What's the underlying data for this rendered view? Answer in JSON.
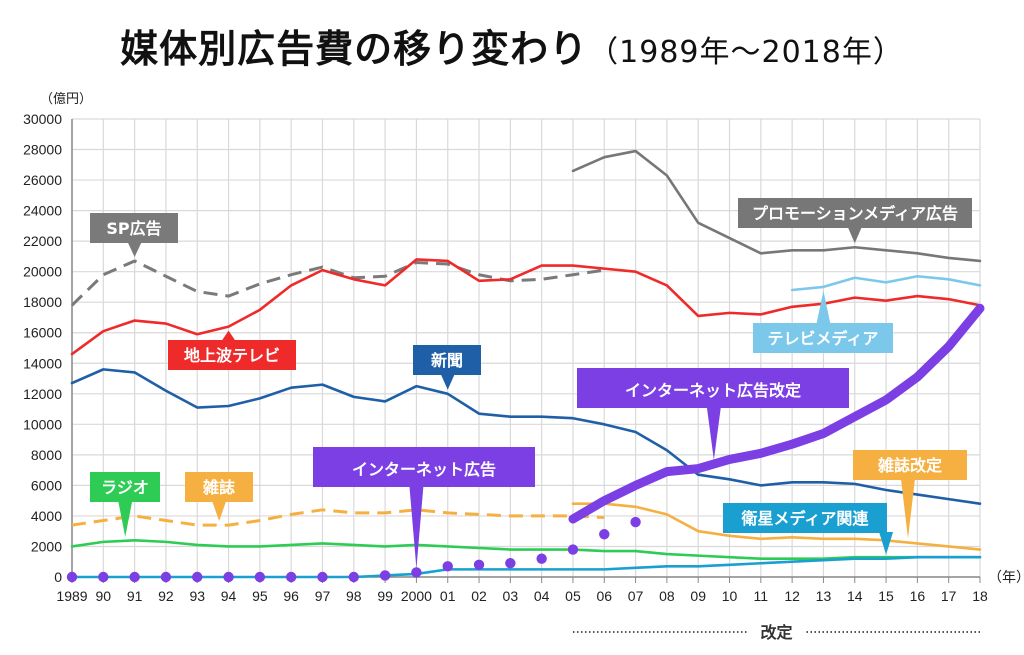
{
  "title": "媒体別広告費の移り変わり",
  "title_sub": "（1989年〜2018年）",
  "unit_label": "（億円）",
  "chart_data": {
    "type": "line",
    "title": "媒体別広告費の移り変わり（1989年〜2018年）",
    "xlabel": "（年）",
    "ylabel": "（億円）",
    "ylim": [
      0,
      30000
    ],
    "yticks": [
      0,
      2000,
      4000,
      6000,
      8000,
      10000,
      12000,
      14000,
      16000,
      18000,
      20000,
      22000,
      24000,
      26000,
      28000,
      30000
    ],
    "x": [
      1989,
      1990,
      1991,
      1992,
      1993,
      1994,
      1995,
      1996,
      1997,
      1998,
      1999,
      2000,
      2001,
      2002,
      2003,
      2004,
      2005,
      2006,
      2007,
      2008,
      2009,
      2010,
      2011,
      2012,
      2013,
      2014,
      2015,
      2016,
      2017,
      2018
    ],
    "xtick_labels": [
      "1989",
      "90",
      "91",
      "92",
      "93",
      "94",
      "95",
      "96",
      "97",
      "98",
      "99",
      "2000",
      "01",
      "02",
      "03",
      "04",
      "05",
      "06",
      "07",
      "08",
      "09",
      "10",
      "11",
      "12",
      "13",
      "14",
      "15",
      "16",
      "17",
      "18"
    ],
    "grid": true,
    "footnote": "改定",
    "footnote_range": [
      2005,
      2018
    ],
    "series": [
      {
        "name": "SP広告",
        "color": "#7a7a7a",
        "style": "dashed",
        "x0": 1989,
        "values": [
          17800,
          19800,
          20700,
          19700,
          18700,
          18400,
          19200,
          19800,
          20300,
          19600,
          19700,
          20600,
          20500,
          19800,
          19400,
          19500,
          19800,
          20100
        ]
      },
      {
        "name": "プロモーションメディア広告",
        "color": "#777777",
        "style": "solid",
        "x0": 2005,
        "values": [
          26600,
          27500,
          27900,
          26300,
          23200,
          22200,
          21200,
          21400,
          21400,
          21600,
          21400,
          21200,
          20900,
          20700
        ]
      },
      {
        "name": "地上波テレビ",
        "color": "#ee2a2a",
        "style": "solid",
        "x0": 1989,
        "values": [
          14600,
          16100,
          16800,
          16600,
          15900,
          16400,
          17500,
          19100,
          20100,
          19500,
          19100,
          20800,
          20700,
          19400,
          19500,
          20400,
          20400,
          20200,
          20000,
          19100,
          17100,
          17300,
          17200,
          17700,
          17900,
          18300,
          18100,
          18400,
          18200,
          17800
        ]
      },
      {
        "name": "テレビメディア",
        "color": "#7cc8ea",
        "style": "solid",
        "x0": 2012,
        "values": [
          18800,
          19000,
          19600,
          19300,
          19700,
          19500,
          19100
        ]
      },
      {
        "name": "新聞",
        "color": "#1f5fa8",
        "style": "solid",
        "x0": 1989,
        "values": [
          12700,
          13600,
          13400,
          12200,
          11100,
          11200,
          11700,
          12400,
          12600,
          11800,
          11500,
          12500,
          12000,
          10700,
          10500,
          10500,
          10400,
          10000,
          9500,
          8300,
          6700,
          6400,
          6000,
          6200,
          6200,
          6100,
          5700,
          5400,
          5100,
          4800
        ]
      },
      {
        "name": "雑誌",
        "color": "#f5b041",
        "style": "dashed",
        "x0": 1989,
        "values": [
          3400,
          3700,
          4000,
          3700,
          3400,
          3400,
          3700,
          4100,
          4400,
          4200,
          4200,
          4400,
          4200,
          4100,
          4000,
          4000,
          4000,
          3900
        ]
      },
      {
        "name": "雑誌改定",
        "color": "#f5b041",
        "style": "solid",
        "x0": 2005,
        "values": [
          4800,
          4800,
          4600,
          4100,
          3000,
          2700,
          2500,
          2600,
          2500,
          2500,
          2400,
          2200,
          2000,
          1800
        ]
      },
      {
        "name": "ラジオ",
        "color": "#2ecc55",
        "style": "solid",
        "x0": 1989,
        "values": [
          2000,
          2300,
          2400,
          2300,
          2100,
          2000,
          2000,
          2100,
          2200,
          2100,
          2000,
          2100,
          2000,
          1900,
          1800,
          1800,
          1800,
          1700,
          1700,
          1500,
          1400,
          1300,
          1200,
          1200,
          1200,
          1300,
          1300,
          1300,
          1300,
          1300
        ]
      },
      {
        "name": "衛星メディア関連",
        "color": "#1aa0d0",
        "style": "solid",
        "x0": 1989,
        "values": [
          0,
          0,
          0,
          0,
          0,
          0,
          0,
          0,
          0,
          0,
          100,
          200,
          500,
          500,
          500,
          500,
          500,
          500,
          600,
          700,
          700,
          800,
          900,
          1000,
          1100,
          1200,
          1200,
          1300,
          1300,
          1300
        ]
      },
      {
        "name": "インターネット広告",
        "color": "#7b3fe4",
        "style": "dotted",
        "x0": 1989,
        "values": [
          0,
          0,
          0,
          0,
          0,
          0,
          0,
          0,
          0,
          0,
          100,
          300,
          700,
          800,
          900,
          1200,
          1800,
          2800,
          3600
        ]
      },
      {
        "name": "インターネット広告改定",
        "color": "#7b3fe4",
        "style": "bold",
        "x0": 2005,
        "values": [
          3800,
          5000,
          6000,
          6900,
          7100,
          7700,
          8100,
          8700,
          9400,
          10500,
          11600,
          13100,
          15100,
          17600
        ]
      }
    ],
    "annotations": [
      {
        "text": "SP広告",
        "color": "#7a7a7a",
        "series": "SP広告",
        "x": 1991
      },
      {
        "text": "地上波テレビ",
        "color": "#ee2a2a",
        "series": "地上波テレビ",
        "x": 1994
      },
      {
        "text": "新聞",
        "color": "#1f5fa8",
        "series": "新聞",
        "x": 2001
      },
      {
        "text": "ラジオ",
        "color": "#2ecc55",
        "series": "ラジオ",
        "x": 1990.7
      },
      {
        "text": "雑誌",
        "color": "#f5b041",
        "series": "雑誌",
        "x": 1993.7
      },
      {
        "text": "インターネット広告",
        "color": "#7b3fe4",
        "series": "インターネット広告",
        "x": 2000
      },
      {
        "text": "インターネット広告改定",
        "color": "#7b3fe4",
        "series": "インターネット広告改定",
        "x": 2009.5
      },
      {
        "text": "プロモーションメディア広告",
        "color": "#777777",
        "series": "プロモーションメディア広告",
        "x": 2014
      },
      {
        "text": "テレビメディア",
        "color": "#7cc8ea",
        "series": "テレビメディア",
        "x": 2013
      },
      {
        "text": "雑誌改定",
        "color": "#f5b041",
        "series": "雑誌改定",
        "x": 2015.7
      },
      {
        "text": "衛星メディア関連",
        "color": "#1aa0d0",
        "series": "衛星メディア関連",
        "x": 2015
      }
    ]
  }
}
